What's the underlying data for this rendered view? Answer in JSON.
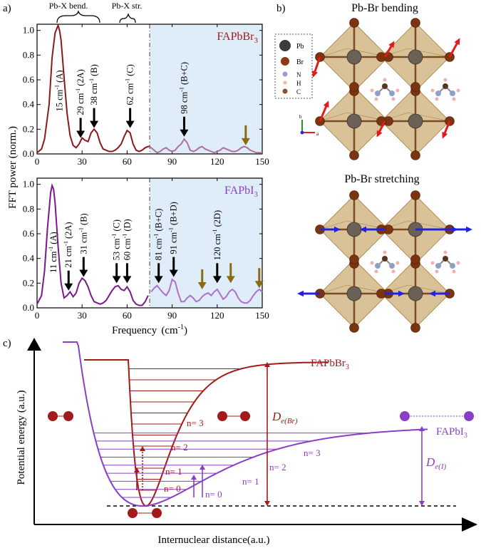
{
  "panel_labels": {
    "a": "a)",
    "b": "b)",
    "c": "c)"
  },
  "shared": {
    "ylabel": "FFT power (norm.)",
    "xlabel_main": "Frequency",
    "xlabel_unit": "(cm",
    "xlabel_sup": "-1",
    "xlabel_close": ")"
  },
  "bracket_labels": {
    "bend": "Pb-X bend.",
    "str": "Pb-X str."
  },
  "chart_data": [
    {
      "type": "line",
      "title": "FAPbBr",
      "title_sub": "3",
      "xlim": [
        0,
        150
      ],
      "ylim": [
        0,
        1.05
      ],
      "xticks": [
        "0",
        "30",
        "60",
        "90",
        "120",
        "150"
      ],
      "yticks": [
        "0.0",
        "0.2",
        "0.4",
        "0.6",
        "0.8",
        "1.0"
      ],
      "shaded_from": 75,
      "color": "#8a1a1a",
      "shaded_color": "#b0709a",
      "x": [
        0,
        3,
        5,
        8,
        10,
        12,
        14,
        15,
        16,
        18,
        20,
        22,
        24,
        26,
        28,
        30,
        32,
        34,
        36,
        38,
        40,
        42,
        44,
        46,
        48,
        50,
        52,
        54,
        56,
        58,
        60,
        62,
        64,
        66,
        68,
        70,
        72,
        74,
        75,
        78,
        80,
        82,
        84,
        86,
        88,
        90,
        92,
        94,
        96,
        98,
        100,
        102,
        104,
        106,
        108,
        110,
        112,
        114,
        116,
        118,
        120,
        122,
        124,
        126,
        128,
        130,
        132,
        134,
        136,
        138,
        140,
        142,
        144,
        146,
        148,
        150
      ],
      "y": [
        0.01,
        0.04,
        0.12,
        0.4,
        0.78,
        0.98,
        1.04,
        1.0,
        0.92,
        0.62,
        0.33,
        0.15,
        0.07,
        0.05,
        0.08,
        0.13,
        0.11,
        0.1,
        0.17,
        0.2,
        0.17,
        0.09,
        0.04,
        0.03,
        0.02,
        0.02,
        0.03,
        0.05,
        0.08,
        0.14,
        0.19,
        0.17,
        0.08,
        0.03,
        0.02,
        0.03,
        0.05,
        0.06,
        0.06,
        0.03,
        0.01,
        0.02,
        0.04,
        0.05,
        0.03,
        0.02,
        0.03,
        0.06,
        0.08,
        0.12,
        0.09,
        0.03,
        0.02,
        0.03,
        0.05,
        0.06,
        0.04,
        0.03,
        0.02,
        0.01,
        0.02,
        0.03,
        0.05,
        0.04,
        0.03,
        0.02,
        0.02,
        0.03,
        0.05,
        0.06,
        0.05,
        0.03,
        0.02,
        0.01,
        0.01,
        0.01
      ],
      "annotations": [
        {
          "x": 15,
          "label": "15 cm",
          "mode": "A",
          "tip": 0.32,
          "arrow": false
        },
        {
          "x": 29,
          "label": "29 cm",
          "mode": "2A",
          "tip": 0.13,
          "arrow": true,
          "color": "black"
        },
        {
          "x": 38,
          "label": "38 cm",
          "mode": "B",
          "tip": 0.21,
          "arrow": true,
          "color": "black"
        },
        {
          "x": 62,
          "label": "62 cm",
          "mode": "C",
          "tip": 0.21,
          "arrow": true,
          "color": "black"
        },
        {
          "x": 98,
          "label": "98 cm",
          "mode": "B+C",
          "tip": 0.14,
          "arrow": true,
          "color": "black"
        },
        {
          "x": 139,
          "label": "",
          "mode": "",
          "tip": 0.07,
          "arrow": true,
          "color": "olive"
        }
      ]
    },
    {
      "type": "line",
      "title": "FAPbI",
      "title_sub": "3",
      "xlim": [
        0,
        150
      ],
      "ylim": [
        0,
        1.05
      ],
      "xticks": [
        "0",
        "30",
        "60",
        "90",
        "120",
        "150"
      ],
      "yticks": [
        "0.0",
        "0.2",
        "0.4",
        "0.6",
        "0.8",
        "1.0"
      ],
      "shaded_from": 75,
      "color": "#7a1a8a",
      "shaded_color": "#b070c8",
      "x": [
        0,
        3,
        5,
        7,
        9,
        10,
        11,
        12,
        14,
        16,
        18,
        20,
        22,
        24,
        26,
        28,
        30,
        32,
        34,
        36,
        38,
        40,
        42,
        44,
        46,
        48,
        50,
        52,
        54,
        56,
        58,
        60,
        62,
        64,
        66,
        68,
        70,
        72,
        74,
        76,
        78,
        80,
        82,
        84,
        86,
        88,
        90,
        92,
        94,
        96,
        98,
        100,
        102,
        104,
        106,
        108,
        110,
        112,
        114,
        116,
        118,
        120,
        122,
        124,
        126,
        128,
        130,
        132,
        134,
        136,
        138,
        140,
        142,
        144,
        146,
        148,
        150
      ],
      "y": [
        0.03,
        0.1,
        0.3,
        0.65,
        0.93,
        0.99,
        0.96,
        0.85,
        0.5,
        0.2,
        0.08,
        0.1,
        0.13,
        0.09,
        0.12,
        0.2,
        0.24,
        0.22,
        0.17,
        0.1,
        0.05,
        0.04,
        0.03,
        0.04,
        0.06,
        0.1,
        0.14,
        0.17,
        0.18,
        0.15,
        0.14,
        0.17,
        0.13,
        0.06,
        0.03,
        0.02,
        0.02,
        0.05,
        0.1,
        0.13,
        0.16,
        0.18,
        0.15,
        0.12,
        0.1,
        0.14,
        0.23,
        0.21,
        0.12,
        0.05,
        0.05,
        0.08,
        0.1,
        0.08,
        0.05,
        0.06,
        0.09,
        0.11,
        0.12,
        0.1,
        0.13,
        0.15,
        0.11,
        0.07,
        0.09,
        0.13,
        0.15,
        0.13,
        0.08,
        0.05,
        0.04,
        0.04,
        0.06,
        0.1,
        0.13,
        0.15,
        0.13
      ]
    }
  ],
  "annotations_bottom": [
    {
      "x": 11,
      "label": "11 cm",
      "mode": "A",
      "tip": 0.26,
      "arrow": false
    },
    {
      "x": 21,
      "label": "21 cm",
      "mode": "2A",
      "tip": 0.14,
      "arrow": true,
      "color": "black"
    },
    {
      "x": 31,
      "label": "31 cm",
      "mode": "B",
      "tip": 0.25,
      "arrow": true,
      "color": "black"
    },
    {
      "x": 53,
      "label": "53 cm",
      "mode": "C",
      "tip": 0.2,
      "arrow": true,
      "color": "black"
    },
    {
      "x": 60,
      "label": "60 cm",
      "mode": "D",
      "tip": 0.2,
      "arrow": true,
      "color": "black"
    },
    {
      "x": 81,
      "label": "81 cm",
      "mode": "B+C",
      "tip": 0.2,
      "arrow": true,
      "color": "black"
    },
    {
      "x": 91,
      "label": "91 cm",
      "mode": "B+D",
      "tip": 0.25,
      "arrow": true,
      "color": "black"
    },
    {
      "x": 120,
      "label": "120 cm",
      "mode": "2D",
      "tip": 0.2,
      "arrow": true,
      "color": "black"
    },
    {
      "x": 110,
      "label": "",
      "mode": "",
      "tip": 0.15,
      "arrow": true,
      "color": "olive"
    },
    {
      "x": 129,
      "label": "",
      "mode": "",
      "tip": 0.2,
      "arrow": true,
      "color": "olive"
    },
    {
      "x": 148,
      "label": "",
      "mode": "",
      "tip": 0.16,
      "arrow": true,
      "color": "olive"
    }
  ],
  "panel_b": {
    "title_top": "Pb-Br bending",
    "title_bottom": "Pb-Br stretching",
    "legend": [
      "Pb",
      "Br",
      "N",
      "H",
      "C"
    ],
    "axis_b": "b",
    "axis_a": "a"
  },
  "panel_c": {
    "ylabel": "Potential energy (a.u.)",
    "xlabel": "Internuclear distance(a.u.)",
    "br_label": "FAPbBr",
    "br_sub": "3",
    "i_label": "FAPbI",
    "i_sub": "3",
    "de_br_main": "D",
    "de_br_sub": "e(Br)",
    "de_i_main": "D",
    "de_i_sub": "e(I)",
    "levels_br": [
      "n= 0",
      "n= 1",
      "n= 2",
      "n= 3"
    ],
    "levels_i": [
      "n= 0",
      "n= 1",
      "n= 2",
      "n= 3"
    ],
    "color_br": "#a31a1a",
    "color_i": "#8a3ec8"
  }
}
